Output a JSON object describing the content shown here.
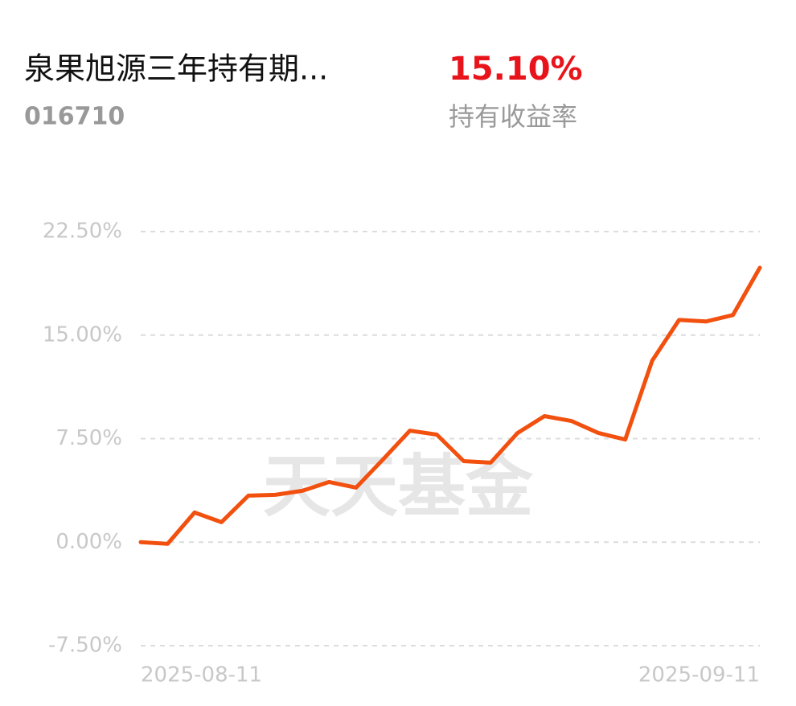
{
  "header": {
    "title": "泉果旭源三年持有期...",
    "code": "016710",
    "return_value": "15.10%",
    "return_label": "持有收益率"
  },
  "chart_data": {
    "type": "line",
    "watermark": "天天基金",
    "categories": [
      "2025-08-11",
      null,
      null,
      null,
      null,
      null,
      null,
      null,
      null,
      null,
      null,
      null,
      null,
      null,
      null,
      null,
      null,
      null,
      null,
      null,
      null,
      null,
      null,
      "2025-09-11"
    ],
    "values": [
      0.0,
      -0.12,
      2.15,
      1.45,
      3.37,
      3.43,
      3.72,
      4.36,
      3.95,
      5.99,
      8.08,
      7.79,
      5.87,
      5.76,
      7.91,
      9.13,
      8.78,
      7.91,
      7.44,
      13.14,
      16.1,
      15.99,
      16.45,
      19.88
    ],
    "color": "#f2500f",
    "ylim": [
      -7.5,
      22.5
    ],
    "yticks": [
      {
        "value": -7.5,
        "label": "-7.50%"
      },
      {
        "value": 0,
        "label": "0.00%"
      },
      {
        "value": 7.5,
        "label": "7.50%"
      },
      {
        "value": 15,
        "label": "15.00%"
      },
      {
        "value": 22.5,
        "label": "22.50%"
      }
    ],
    "grid": true
  }
}
